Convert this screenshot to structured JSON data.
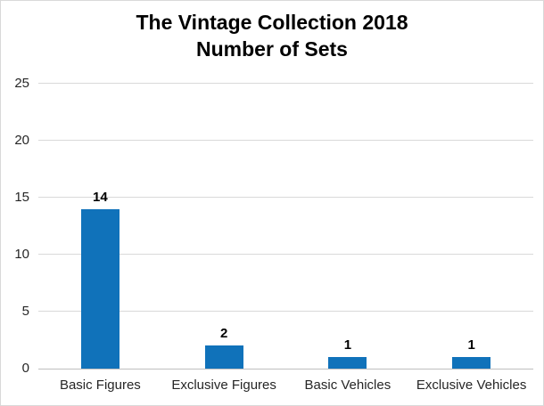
{
  "chart_data": {
    "type": "bar",
    "title": "The Vintage Collection 2018",
    "subtitle": "Number of Sets",
    "categories": [
      "Basic Figures",
      "Exclusive Figures",
      "Basic Vehicles",
      "Exclusive Vehicles"
    ],
    "values": [
      14,
      2,
      1,
      1
    ],
    "data_labels": [
      "14",
      "2",
      "1",
      "1"
    ],
    "xlabel": "",
    "ylabel": "",
    "ylim": [
      0,
      25
    ],
    "yticks": [
      0,
      5,
      10,
      15,
      20,
      25
    ],
    "grid": true,
    "legend": "none",
    "colors": {
      "bar": "#1072BA",
      "gridline": "#D9D9D9",
      "axis_line": "#BFBFBF",
      "tick_text": "#262626",
      "title_text": "#000000"
    }
  }
}
